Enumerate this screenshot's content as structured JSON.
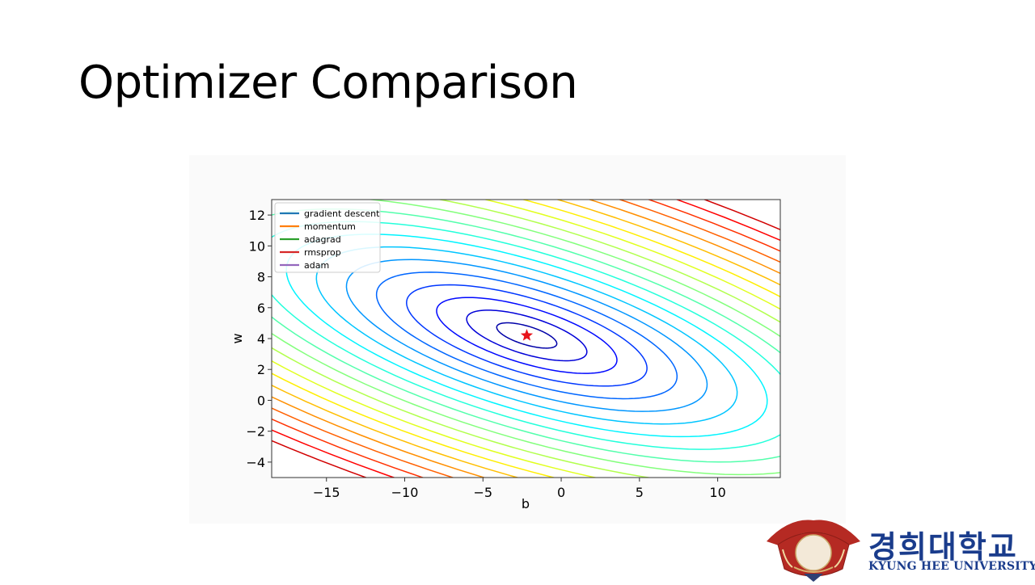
{
  "slide": {
    "title": "Optimizer Comparison"
  },
  "colors": {
    "star": "#e8141b",
    "frame": "#333333",
    "logo_red": "#b52a23",
    "logo_blue": "#1a3c8c"
  },
  "logo": {
    "korean": "경희대학교",
    "english": "KYUNG HEE UNIVERSITY",
    "icon": "university-seal-icon"
  },
  "chart_data": {
    "type": "contour",
    "xlabel": "b",
    "ylabel": "w",
    "xlim": [
      -18.5,
      14
    ],
    "ylim": [
      -5,
      13
    ],
    "xticks": [
      -15,
      -10,
      -5,
      0,
      5,
      10
    ],
    "yticks": [
      -4,
      -2,
      0,
      2,
      4,
      6,
      8,
      10,
      12
    ],
    "xtick_labels": [
      "−15",
      "−10",
      "−5",
      "0",
      "5",
      "10"
    ],
    "ytick_labels": [
      "−4",
      "−2",
      "0",
      "2",
      "4",
      "6",
      "8",
      "10",
      "12"
    ],
    "grid": false,
    "legend_position": "top-left",
    "legend": [
      {
        "name": "gradient descent",
        "color": "#1f77b4"
      },
      {
        "name": "momentum",
        "color": "#ff7f0e"
      },
      {
        "name": "adagrad",
        "color": "#2ca02c"
      },
      {
        "name": "rmsprop",
        "color": "#d62728"
      },
      {
        "name": "adam",
        "color": "#9467bd"
      }
    ],
    "minimum": {
      "b": -2.2,
      "w": 4.2,
      "marker": "star"
    },
    "contour": {
      "center_b": -2.2,
      "center_w": 4.2,
      "axis_b": 2.0,
      "axis_w": 0.6,
      "tilt_deg": -17,
      "levels": 20,
      "colormap": "jet"
    }
  }
}
